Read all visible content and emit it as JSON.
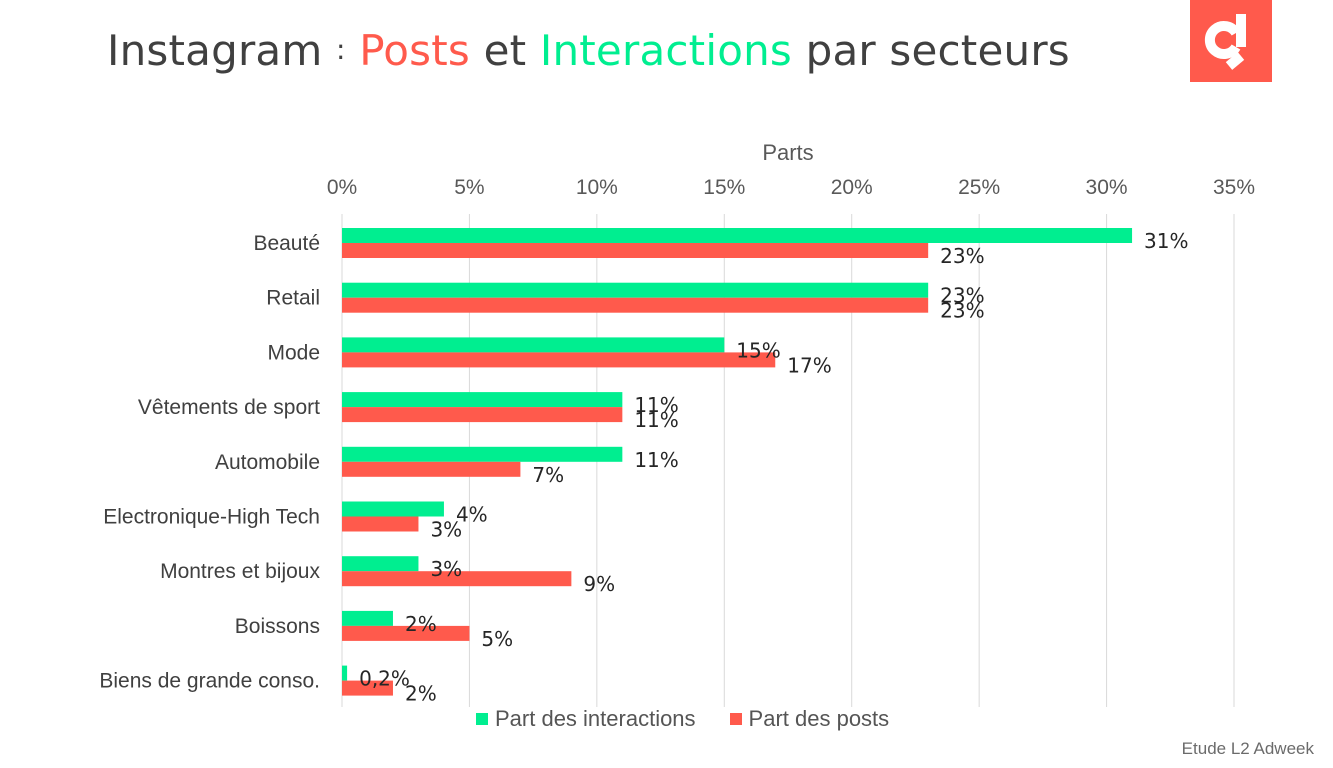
{
  "title": {
    "part1": "Instagram",
    "sep": ":",
    "part2": "Posts",
    "part3": "et",
    "part4": "Interactions",
    "part5": "par secteurs"
  },
  "colors": {
    "interactions": "#00EE90",
    "posts": "#FF5A4C",
    "logo": "#FF5A4C",
    "text": "#404040"
  },
  "logo_icon": "brand-logo-icon",
  "source": "Etude L2 Adweek",
  "chart_data": {
    "type": "bar",
    "orientation": "horizontal",
    "xlabel": "Parts",
    "ylabel": "",
    "xlim": [
      0,
      35
    ],
    "xticks": [
      "0%",
      "5%",
      "10%",
      "15%",
      "20%",
      "25%",
      "30%",
      "35%"
    ],
    "grid": true,
    "legend_position": "bottom",
    "categories": [
      "Beauté",
      "Retail",
      "Mode",
      "Vêtements de sport",
      "Automobile",
      "Electronique-High Tech",
      "Montres et bijoux",
      "Boissons",
      "Biens de grande conso."
    ],
    "series": [
      {
        "name": "Part des interactions",
        "values": [
          31,
          23,
          15,
          11,
          11,
          4,
          3,
          2,
          0.2
        ],
        "labels": [
          "31%",
          "23%",
          "15%",
          "11%",
          "11%",
          "4%",
          "3%",
          "2%",
          "0,2%"
        ]
      },
      {
        "name": "Part des posts",
        "values": [
          23,
          23,
          17,
          11,
          7,
          3,
          9,
          5,
          2
        ],
        "labels": [
          "23%",
          "23%",
          "17%",
          "11%",
          "7%",
          "3%",
          "9%",
          "5%",
          "2%"
        ]
      }
    ]
  }
}
